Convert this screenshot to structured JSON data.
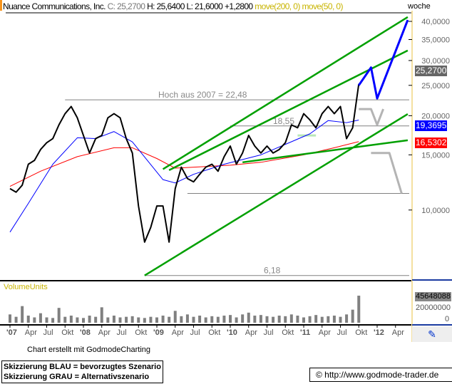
{
  "header": {
    "company": "Nuance Communications, Inc.",
    "close": "C: 25,2700",
    "high": "H: 25,6400",
    "low": "L: 21,6000",
    "change": "+1,2800",
    "ma1": "move(200, 0)",
    "ma2": "move(50, 0)",
    "period": "woche"
  },
  "colors": {
    "price": "#000000",
    "ma200": "#ff0000",
    "ma50": "#0000ff",
    "trend": "#00a000",
    "preferred": "#0000ff",
    "alternative": "#b4b4b4",
    "levels": "#808080",
    "volume": "#808080",
    "axis": "#e8c040"
  },
  "tags": {
    "close": "25,2700",
    "ma50": "19,3695",
    "ma200": "16,5302"
  },
  "volume": {
    "label": "VolumeUnits",
    "max_label": "45648088",
    "mid_label": "20000000",
    "zero_label": "0"
  },
  "footer": {
    "credit": "Chart erstellt mit GodmodeCharting",
    "legend1": "Skizzierung BLAU = bevorzugtes Szenario",
    "legend2": "Skizzierung GRAU = Alternativszenario",
    "copyright": "© http://www.godmode-trader.de"
  },
  "chart_data": {
    "type": "line",
    "yscale": "log",
    "ylim": [
      5.9,
      43
    ],
    "xlim": [
      "2007-01",
      "2012-06"
    ],
    "y_ticks": [
      "10,0000",
      "15,0000",
      "20,0000",
      "25,0000",
      "30,0000",
      "35,0000",
      "40,0000"
    ],
    "y_tick_values": [
      10,
      15,
      20,
      25,
      30,
      35,
      40
    ],
    "x_ticks": [
      {
        "label": "'07",
        "date": "2007-01",
        "bold": true
      },
      {
        "label": "Apr",
        "date": "2007-04"
      },
      {
        "label": "Jul",
        "date": "2007-07"
      },
      {
        "label": "Okt",
        "date": "2007-10"
      },
      {
        "label": "'08",
        "date": "2008-01",
        "bold": true
      },
      {
        "label": "Apr",
        "date": "2008-04"
      },
      {
        "label": "Jul",
        "date": "2008-07"
      },
      {
        "label": "Okt",
        "date": "2008-10"
      },
      {
        "label": "'09",
        "date": "2009-01",
        "bold": true
      },
      {
        "label": "Apr",
        "date": "2009-04"
      },
      {
        "label": "Jul",
        "date": "2009-07"
      },
      {
        "label": "Okt",
        "date": "2009-10"
      },
      {
        "label": "'10",
        "date": "2010-01",
        "bold": true
      },
      {
        "label": "Apr",
        "date": "2010-04"
      },
      {
        "label": "Jul",
        "date": "2010-07"
      },
      {
        "label": "Okt",
        "date": "2010-10"
      },
      {
        "label": "'11",
        "date": "2011-01",
        "bold": true
      },
      {
        "label": "Apr",
        "date": "2011-04"
      },
      {
        "label": "Jul",
        "date": "2011-07"
      },
      {
        "label": "Okt",
        "date": "2011-10"
      },
      {
        "label": "'12",
        "date": "2012-01",
        "bold": true
      },
      {
        "label": "Apr",
        "date": "2012-04"
      }
    ],
    "price": {
      "dates": [
        "2007-01",
        "2007-02",
        "2007-03",
        "2007-04",
        "2007-05",
        "2007-06",
        "2007-07",
        "2007-08",
        "2007-09",
        "2007-10",
        "2007-11",
        "2007-12",
        "2008-01",
        "2008-02",
        "2008-03",
        "2008-04",
        "2008-05",
        "2008-06",
        "2008-07",
        "2008-08",
        "2008-09",
        "2008-10",
        "2008-11",
        "2008-12",
        "2009-01",
        "2009-02",
        "2009-03",
        "2009-04",
        "2009-05",
        "2009-06",
        "2009-07",
        "2009-08",
        "2009-09",
        "2009-10",
        "2009-11",
        "2009-12",
        "2010-01",
        "2010-02",
        "2010-03",
        "2010-04",
        "2010-05",
        "2010-06",
        "2010-07",
        "2010-08",
        "2010-09",
        "2010-10",
        "2010-11",
        "2010-12",
        "2011-01",
        "2011-02",
        "2011-03",
        "2011-04",
        "2011-05",
        "2011-06",
        "2011-07",
        "2011-08",
        "2011-09",
        "2011-10"
      ],
      "values": [
        11.7,
        11.4,
        12.0,
        14.0,
        14.4,
        15.6,
        16.4,
        16.9,
        18.7,
        20.3,
        21.4,
        19.7,
        17.3,
        15.2,
        16.9,
        17.3,
        19.7,
        20.3,
        19.7,
        16.9,
        15.2,
        10.3,
        7.9,
        8.8,
        10.3,
        10.3,
        7.9,
        11.7,
        13.7,
        12.6,
        12.3,
        13.0,
        13.7,
        14.0,
        13.3,
        14.8,
        16.0,
        14.0,
        15.2,
        17.3,
        16.0,
        15.2,
        16.0,
        15.2,
        15.6,
        16.4,
        18.7,
        18.3,
        20.3,
        19.4,
        18.3,
        20.3,
        21.4,
        20.3,
        21.4,
        16.9,
        18.3,
        25.27
      ]
    },
    "ma200": {
      "name": "move(200, 0)",
      "dates": [
        "2007-01",
        "2007-06",
        "2007-12",
        "2008-06",
        "2008-09",
        "2009-01",
        "2009-04",
        "2010-01",
        "2010-06",
        "2011-01",
        "2011-06",
        "2011-10"
      ],
      "values": [
        11.9,
        13.3,
        14.8,
        15.8,
        15.8,
        14.6,
        13.6,
        13.9,
        14.2,
        15.0,
        15.8,
        16.53
      ]
    },
    "ma50": {
      "name": "move(50, 0)",
      "dates": [
        "2007-01",
        "2007-04",
        "2007-08",
        "2007-12",
        "2008-03",
        "2008-06",
        "2008-09",
        "2009-02",
        "2009-04",
        "2009-07",
        "2009-12",
        "2010-06",
        "2010-10",
        "2011-02",
        "2011-05",
        "2011-08",
        "2011-10"
      ],
      "values": [
        8.5,
        10.5,
        14.0,
        17.0,
        16.9,
        17.8,
        16.5,
        12.5,
        12.2,
        13.0,
        14.0,
        15.0,
        16.2,
        17.5,
        19.3,
        19.0,
        19.37
      ]
    },
    "levels": [
      {
        "label": "Hoch aus 2007  =  22,48",
        "value": 22.48,
        "from": "2007-10"
      },
      {
        "label": "18,55",
        "value": 18.55,
        "from": "2010-01"
      },
      {
        "label": "6,18",
        "value": 6.18,
        "from": "2008-11"
      },
      {
        "label": "",
        "value": 11.3,
        "from": "2009-06"
      }
    ],
    "trendlines": [
      {
        "points": [
          [
            "2009-02",
            13.5
          ],
          [
            "2012-06",
            41.3
          ]
        ]
      },
      {
        "points": [
          [
            "2009-03",
            13.4
          ],
          [
            "2012-06",
            32.3
          ]
        ]
      },
      {
        "points": [
          [
            "2008-11",
            6.18
          ],
          [
            "2012-06",
            20.25
          ]
        ]
      },
      {
        "points": [
          [
            "2010-03",
            14.2
          ],
          [
            "2012-06",
            16.7
          ]
        ]
      }
    ],
    "highlight": {
      "points": [
        [
          "2010-12",
          17.3
        ],
        [
          "2011-03",
          17.3
        ]
      ]
    },
    "scenario_blue": [
      [
        "2011-10",
        25.0
      ],
      [
        "2011-12",
        28.5
      ],
      [
        "2012-01",
        22.7
      ],
      [
        "2012-06",
        40.4
      ]
    ],
    "scenario_gray": [
      [
        [
          "2011-10",
          21.0
        ],
        [
          "2011-12",
          21.0
        ],
        [
          "2012-01",
          18.7
        ],
        [
          "2012-02",
          21.0
        ]
      ],
      [
        [
          "2011-12",
          15.2
        ],
        [
          "2012-03",
          15.2
        ],
        [
          "2012-05",
          11.3
        ]
      ]
    ],
    "volume_values": [
      14,
      10,
      28,
      12,
      9,
      16,
      9,
      8,
      25,
      10,
      12,
      9,
      8,
      12,
      10,
      26,
      9,
      12,
      9,
      10,
      11,
      9,
      8,
      10,
      9,
      12,
      10,
      20,
      11,
      14,
      10,
      12,
      9,
      11,
      10,
      12,
      13,
      9,
      14,
      17,
      12,
      13,
      11,
      10,
      12,
      11,
      14,
      12,
      9,
      11,
      13,
      10,
      11,
      12,
      10,
      14,
      22,
      45.6
    ]
  }
}
